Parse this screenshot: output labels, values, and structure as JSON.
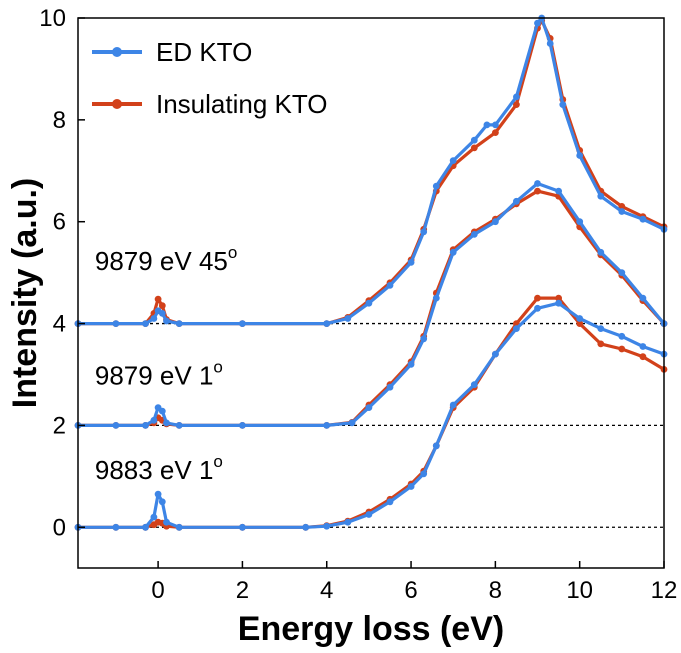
{
  "chart_data": {
    "type": "line",
    "title": "",
    "xlabel": "Energy loss (eV)",
    "ylabel": "Intensity (a.u.)",
    "xlim": [
      -1.9,
      12
    ],
    "ylim": [
      -0.8,
      10
    ],
    "xticks": [
      0,
      2,
      4,
      6,
      8,
      10,
      12
    ],
    "yticks": [
      0,
      2,
      4,
      6,
      8,
      10
    ],
    "baselines": [
      0,
      2,
      4
    ],
    "legend": {
      "position": "top-left"
    },
    "annotations": [
      {
        "id": "a45",
        "main": "9879 eV  45",
        "sup": "o",
        "x": -1.5,
        "y": 5.05
      },
      {
        "id": "a1",
        "main": "9879 eV  1",
        "sup": "o",
        "x": -1.5,
        "y": 2.8
      },
      {
        "id": "a0",
        "main": "9883 eV  1",
        "sup": "o",
        "x": -1.5,
        "y": 0.95
      }
    ],
    "series": [
      {
        "name": "ED KTO",
        "color": "#3d85e6",
        "curves": [
          {
            "offset": 0,
            "points": [
              [
                -1.9,
                0
              ],
              [
                -1,
                0
              ],
              [
                -0.3,
                0
              ],
              [
                -0.1,
                0.2
              ],
              [
                0,
                0.65
              ],
              [
                0.1,
                0.5
              ],
              [
                0.2,
                0.1
              ],
              [
                0.5,
                0
              ],
              [
                2,
                0
              ],
              [
                3.5,
                0
              ],
              [
                4,
                0.02
              ],
              [
                4.5,
                0.1
              ],
              [
                5,
                0.25
              ],
              [
                5.5,
                0.5
              ],
              [
                6,
                0.8
              ],
              [
                6.3,
                1.05
              ],
              [
                6.6,
                1.6
              ],
              [
                7,
                2.4
              ],
              [
                7.5,
                2.8
              ],
              [
                8,
                3.4
              ],
              [
                8.5,
                3.9
              ],
              [
                9,
                4.3
              ],
              [
                9.5,
                4.4
              ],
              [
                10,
                4.1
              ],
              [
                10.5,
                3.9
              ],
              [
                11,
                3.75
              ],
              [
                11.5,
                3.55
              ],
              [
                12,
                3.4
              ]
            ]
          },
          {
            "offset": 2,
            "points": [
              [
                -1.9,
                0
              ],
              [
                -1,
                0
              ],
              [
                -0.3,
                0
              ],
              [
                -0.1,
                0.1
              ],
              [
                0,
                0.35
              ],
              [
                0.1,
                0.28
              ],
              [
                0.2,
                0.05
              ],
              [
                0.5,
                0
              ],
              [
                2,
                0
              ],
              [
                4,
                0
              ],
              [
                4.6,
                0.05
              ],
              [
                5,
                0.35
              ],
              [
                5.5,
                0.75
              ],
              [
                6,
                1.2
              ],
              [
                6.3,
                1.7
              ],
              [
                6.6,
                2.5
              ],
              [
                7,
                3.4
              ],
              [
                7.5,
                3.75
              ],
              [
                8,
                4.0
              ],
              [
                8.5,
                4.4
              ],
              [
                9,
                4.75
              ],
              [
                9.5,
                4.6
              ],
              [
                10,
                4.0
              ],
              [
                10.5,
                3.4
              ],
              [
                11,
                3.0
              ],
              [
                11.5,
                2.5
              ],
              [
                12,
                2.0
              ]
            ]
          },
          {
            "offset": 4,
            "points": [
              [
                -1.9,
                0
              ],
              [
                -1,
                0
              ],
              [
                -0.3,
                0
              ],
              [
                -0.1,
                0.1
              ],
              [
                0,
                0.25
              ],
              [
                0.1,
                0.2
              ],
              [
                0.2,
                0.05
              ],
              [
                0.5,
                0
              ],
              [
                2,
                0
              ],
              [
                4,
                0
              ],
              [
                4.5,
                0.1
              ],
              [
                5,
                0.4
              ],
              [
                5.5,
                0.75
              ],
              [
                6,
                1.2
              ],
              [
                6.3,
                1.8
              ],
              [
                6.6,
                2.7
              ],
              [
                7,
                3.2
              ],
              [
                7.5,
                3.6
              ],
              [
                7.8,
                3.9
              ],
              [
                8,
                3.9
              ],
              [
                8.5,
                4.45
              ],
              [
                9,
                5.9
              ],
              [
                9.1,
                6.0
              ],
              [
                9.3,
                5.5
              ],
              [
                9.6,
                4.3
              ],
              [
                10,
                3.3
              ],
              [
                10.5,
                2.5
              ],
              [
                11,
                2.2
              ],
              [
                11.5,
                2.05
              ],
              [
                12,
                1.85
              ]
            ]
          }
        ]
      },
      {
        "name": "Insulating KTO",
        "color": "#d2411a",
        "curves": [
          {
            "offset": 0,
            "points": [
              [
                -1.9,
                0
              ],
              [
                -1,
                0
              ],
              [
                -0.3,
                0
              ],
              [
                -0.1,
                0.05
              ],
              [
                0,
                0.1
              ],
              [
                0.1,
                0.08
              ],
              [
                0.2,
                0.02
              ],
              [
                0.5,
                0
              ],
              [
                2,
                0
              ],
              [
                3.5,
                0
              ],
              [
                4,
                0.03
              ],
              [
                4.5,
                0.12
              ],
              [
                5,
                0.3
              ],
              [
                5.5,
                0.55
              ],
              [
                6,
                0.85
              ],
              [
                6.3,
                1.1
              ],
              [
                6.6,
                1.6
              ],
              [
                7,
                2.35
              ],
              [
                7.5,
                2.75
              ],
              [
                8,
                3.4
              ],
              [
                8.5,
                4.0
              ],
              [
                9,
                4.5
              ],
              [
                9.5,
                4.5
              ],
              [
                10,
                4.0
              ],
              [
                10.5,
                3.6
              ],
              [
                11,
                3.5
              ],
              [
                11.5,
                3.35
              ],
              [
                12,
                3.1
              ]
            ]
          },
          {
            "offset": 2,
            "points": [
              [
                -1.9,
                0
              ],
              [
                -1,
                0
              ],
              [
                -0.3,
                0
              ],
              [
                -0.1,
                0.05
              ],
              [
                0,
                0.15
              ],
              [
                0.1,
                0.1
              ],
              [
                0.2,
                0.03
              ],
              [
                0.5,
                0
              ],
              [
                2,
                0
              ],
              [
                4,
                0
              ],
              [
                4.6,
                0.06
              ],
              [
                5,
                0.4
              ],
              [
                5.5,
                0.8
              ],
              [
                6,
                1.25
              ],
              [
                6.3,
                1.75
              ],
              [
                6.6,
                2.6
              ],
              [
                7,
                3.45
              ],
              [
                7.5,
                3.8
              ],
              [
                8,
                4.05
              ],
              [
                8.5,
                4.35
              ],
              [
                9,
                4.6
              ],
              [
                9.5,
                4.5
              ],
              [
                10,
                3.9
              ],
              [
                10.5,
                3.35
              ],
              [
                11,
                2.95
              ],
              [
                11.5,
                2.45
              ],
              [
                12,
                2.0
              ]
            ]
          },
          {
            "offset": 4,
            "points": [
              [
                -1.9,
                0
              ],
              [
                -1,
                0
              ],
              [
                -0.3,
                0
              ],
              [
                -0.1,
                0.2
              ],
              [
                0,
                0.48
              ],
              [
                0.1,
                0.35
              ],
              [
                0.2,
                0.08
              ],
              [
                0.5,
                0
              ],
              [
                2,
                0
              ],
              [
                4,
                0
              ],
              [
                4.5,
                0.12
              ],
              [
                5,
                0.45
              ],
              [
                5.5,
                0.8
              ],
              [
                6,
                1.25
              ],
              [
                6.3,
                1.85
              ],
              [
                6.6,
                2.6
              ],
              [
                7,
                3.1
              ],
              [
                7.5,
                3.45
              ],
              [
                8,
                3.75
              ],
              [
                8.5,
                4.3
              ],
              [
                9,
                5.8
              ],
              [
                9.1,
                5.95
              ],
              [
                9.3,
                5.6
              ],
              [
                9.6,
                4.4
              ],
              [
                10,
                3.4
              ],
              [
                10.5,
                2.6
              ],
              [
                11,
                2.3
              ],
              [
                11.5,
                2.1
              ],
              [
                12,
                1.9
              ]
            ]
          }
        ]
      }
    ]
  }
}
